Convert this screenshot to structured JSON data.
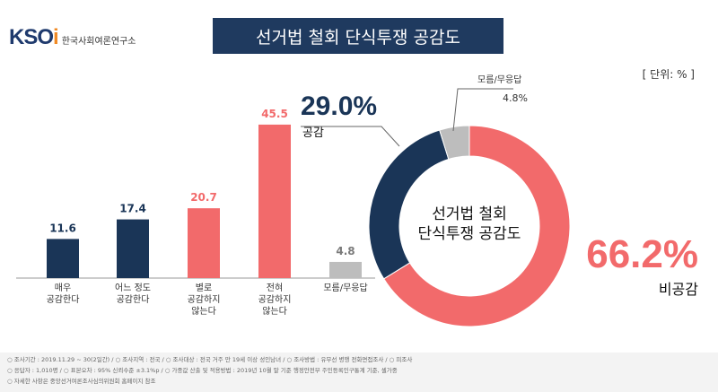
{
  "logo": {
    "mark_main": "KSO",
    "mark_accent": "i",
    "org_name": "한국사회여론연구소"
  },
  "title": "선거법 철회 단식투쟁 공감도",
  "unit_label": "[ 단위: % ]",
  "chart_data": [
    {
      "type": "bar",
      "categories": [
        "매우\n공감한다",
        "어느 정도\n공감한다",
        "별로\n공감하지\n않는다",
        "전혀\n공감하지\n않는다",
        "모름/무응답"
      ],
      "values": [
        11.6,
        17.4,
        20.7,
        45.5,
        4.8
      ],
      "value_labels": [
        "11.6",
        "17.4",
        "20.7",
        "45.5",
        "4.8"
      ],
      "colors": [
        "#1a3557",
        "#1a3557",
        "#f26a6b",
        "#f26a6b",
        "#bdbdbd"
      ],
      "label_colors": [
        "#1a3557",
        "#1a3557",
        "#f26a6b",
        "#f26a6b",
        "#7a7a7a"
      ],
      "ylim": [
        0,
        50
      ]
    },
    {
      "type": "pie",
      "donut": true,
      "center_label": [
        "선거법 철회",
        "단식투쟁 공감도"
      ],
      "slices": [
        {
          "name": "비공감",
          "value": 66.2,
          "label": "66.2%",
          "color": "#f26a6b"
        },
        {
          "name": "공감",
          "value": 29.0,
          "label": "29.0%",
          "color": "#1a3557"
        },
        {
          "name": "모름/무응답",
          "value": 4.8,
          "label": "4.8%",
          "color": "#bdbdbd"
        }
      ]
    }
  ],
  "footer": {
    "line1": "○ 조사기간 : 2019.11.29 ~ 30(2일간)  / ○ 조사지역 : 전국  / ○ 조사대상 : 전국 거주 만 19세 이상 성인남녀  / ○ 조사방법 : 유무선 병행 전화면접조사  / ○ 피조사",
    "line2": "○ 응답자 : 1,010명  / ○ 표본오차 : 95% 신뢰수준 ±3.1%p  / ○ 가중값 산출 및 적용방법 : 2019년 10월 말 기준 행정안전부 주민등록인구통계 기준, 셀가중",
    "line3": "○ 자세한 사항은 중앙선거여론조사심의위원회 홈페이지 참조"
  }
}
